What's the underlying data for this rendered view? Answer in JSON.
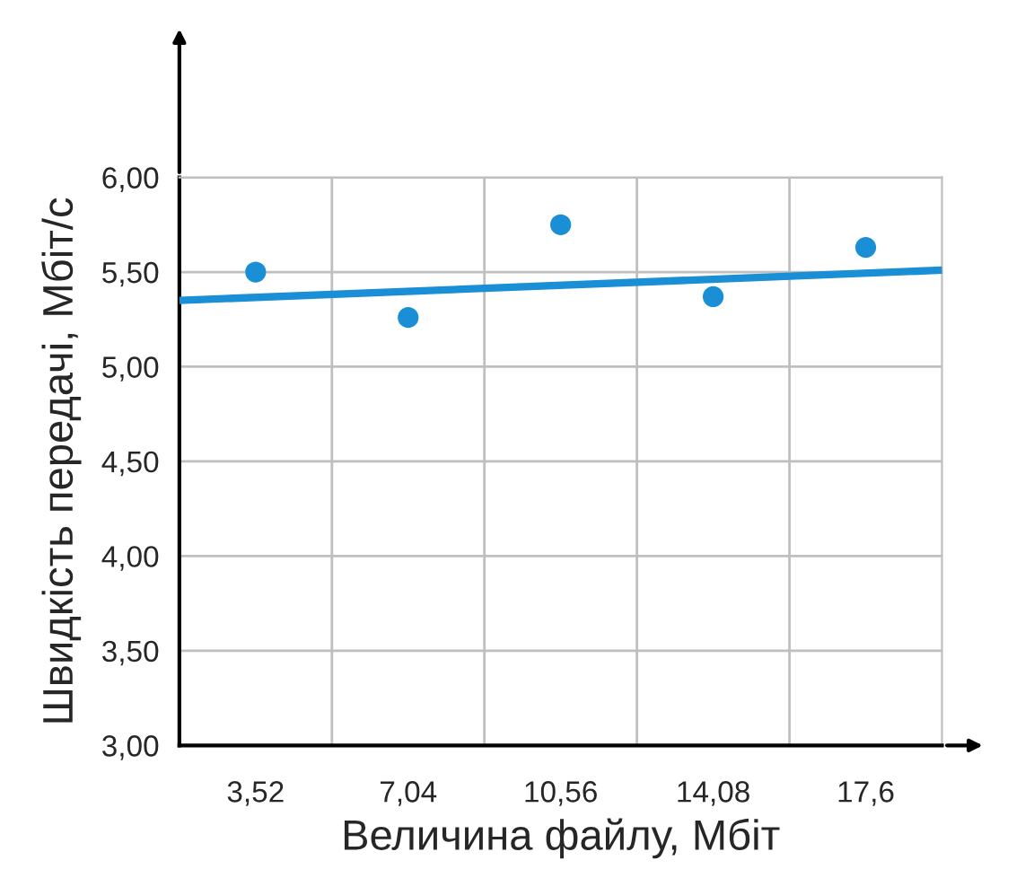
{
  "chart_data": {
    "type": "scatter",
    "xlabel": "Величина файлу, Мбіт",
    "ylabel": "Швидкість передачі, Мбіт/с",
    "series": [
      {
        "marker": "circle",
        "color": "#1a8fd6",
        "x": [
          3.52,
          7.04,
          10.56,
          14.08,
          17.6
        ],
        "values": [
          5.5,
          5.26,
          5.75,
          5.37,
          5.63
        ]
      },
      {
        "type": "line",
        "color": "#1a8fd6",
        "x": [
          1.76,
          19.36
        ],
        "values": [
          5.35,
          5.51
        ]
      }
    ],
    "xlim": [
      1.76,
      19.36
    ],
    "xticks": [
      {
        "value": 3.52,
        "label": "3,52"
      },
      {
        "value": 7.04,
        "label": "7,04"
      },
      {
        "value": 10.56,
        "label": "10,56"
      },
      {
        "value": 14.08,
        "label": "14,08"
      },
      {
        "value": 17.6,
        "label": "17,6"
      }
    ],
    "ylim": [
      3,
      6
    ],
    "yticks": [
      {
        "value": 3,
        "label": "3,00"
      },
      {
        "value": 3.5,
        "label": "3,50"
      },
      {
        "value": 4,
        "label": "4,00"
      },
      {
        "value": 4.5,
        "label": "4,50"
      },
      {
        "value": 5,
        "label": "5,00"
      },
      {
        "value": 5.5,
        "label": "5,50"
      },
      {
        "value": 6,
        "label": "6,00"
      }
    ],
    "ref_lines": [
      {
        "axis": "x",
        "value": 5.28,
        "color": "#bfbfbf"
      },
      {
        "axis": "x",
        "value": 8.8,
        "color": "#bfbfbf"
      },
      {
        "axis": "x",
        "value": 12.32,
        "color": "#bfbfbf"
      },
      {
        "axis": "x",
        "value": 15.84,
        "color": "#bfbfbf"
      }
    ],
    "grid": "y",
    "legend": false
  }
}
